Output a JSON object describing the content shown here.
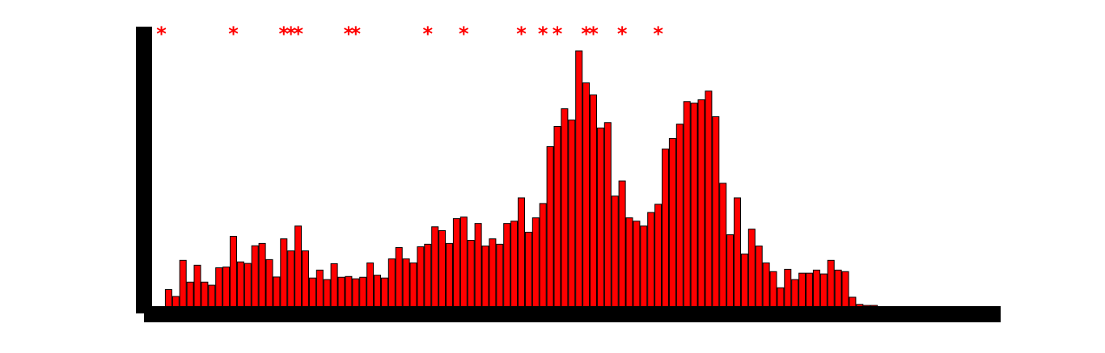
{
  "chart_data": {
    "type": "bar",
    "title": "",
    "xlabel": "",
    "ylabel": "",
    "ylim": [
      0,
      100
    ],
    "grid": false,
    "legend": "none",
    "colors": {
      "bar_fill": "#ff0000",
      "bar_edge": "#000000",
      "marker": "#ff0000",
      "axis": "#000000",
      "background": "#ffffff"
    },
    "marker_glyph": "*",
    "values": [
      0,
      6.8,
      4.1,
      18.2,
      9.7,
      16.3,
      9.7,
      8.5,
      15.3,
      15.6,
      27.6,
      17.6,
      17.0,
      23.9,
      24.8,
      18.5,
      11.7,
      26.6,
      21.9,
      31.6,
      21.9,
      11.3,
      14.4,
      10.7,
      16.9,
      11.6,
      11.9,
      11.0,
      11.6,
      17.2,
      12.4,
      11.3,
      18.8,
      23.2,
      18.8,
      17.2,
      23.5,
      24.5,
      31.3,
      29.8,
      24.8,
      34.5,
      35.1,
      26.0,
      32.6,
      23.8,
      26.6,
      24.5,
      32.6,
      33.5,
      42.6,
      29.2,
      34.8,
      40.4,
      62.6,
      70.5,
      77.4,
      73.0,
      100,
      87.5,
      82.8,
      69.9,
      72.0,
      43.3,
      49.2,
      34.8,
      33.5,
      31.6,
      36.9,
      40.1,
      61.7,
      65.8,
      71.4,
      80.2,
      79.6,
      80.9,
      84.3,
      74.3,
      48.3,
      28.2,
      42.6,
      20.7,
      30.4,
      23.8,
      17.2,
      13.8,
      7.5,
      14.7,
      10.7,
      13.2,
      13.2,
      14.4,
      12.9,
      18.2,
      14.4,
      13.8,
      3.8,
      1.0,
      0.6,
      0.6,
      0,
      0,
      0,
      0,
      0,
      0,
      0,
      0,
      0,
      0,
      0,
      0,
      0,
      0,
      0,
      0,
      0
    ],
    "markers_at_bar_index": [
      0,
      10,
      17,
      18,
      19,
      26,
      27,
      37,
      42,
      50,
      53,
      55,
      59,
      60,
      64,
      69
    ]
  }
}
